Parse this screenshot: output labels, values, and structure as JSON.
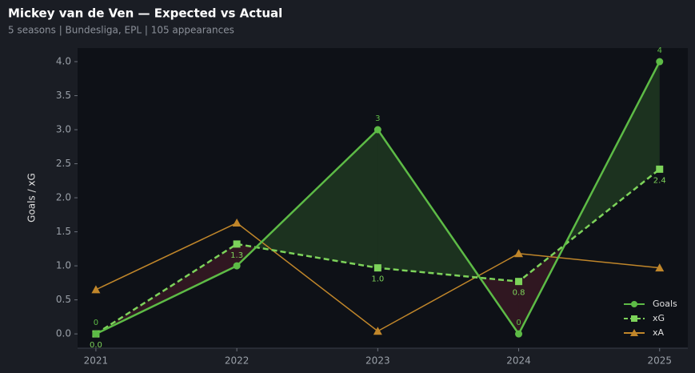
{
  "chart_data": {
    "type": "line",
    "title": "Mickey van de Ven — Expected vs Actual",
    "subtitle": "5 seasons | Bundesliga, EPL | 105 appearances",
    "ylabel": "Goals / xG",
    "x": [
      2021,
      2022,
      2023,
      2024,
      2025
    ],
    "xlim": [
      2020.87,
      2025.2
    ],
    "xticks": [
      2021,
      2022,
      2023,
      2024,
      2025
    ],
    "ylim": [
      -0.21,
      4.2
    ],
    "yticks": [
      {
        "value": 0,
        "label": "0.0"
      },
      {
        "value": 0.5,
        "label": "0.5"
      },
      {
        "value": 1,
        "label": "1.0"
      },
      {
        "value": 1.5,
        "label": "1.5"
      },
      {
        "value": 2,
        "label": "2.0"
      },
      {
        "value": 2.5,
        "label": "2.5"
      },
      {
        "value": 3,
        "label": "3.0"
      },
      {
        "value": 3.5,
        "label": "3.5"
      },
      {
        "value": 4,
        "label": "4.0"
      }
    ],
    "legend": "lower right",
    "series": [
      {
        "name": "Goals",
        "color": "#5dbb46",
        "marker": "circle",
        "dashed": false,
        "values": [
          0,
          1,
          3,
          0,
          4
        ],
        "value_labels": [
          "0",
          null,
          "3",
          "0",
          "4"
        ],
        "label_side": "above"
      },
      {
        "name": "xG",
        "color": "#7dd35a",
        "marker": "square",
        "dashed": true,
        "values": [
          0,
          1.32,
          0.97,
          0.77,
          2.42
        ],
        "value_labels": [
          "0.0",
          "1.3",
          "1.0",
          "0.8",
          "2.4"
        ],
        "label_side": "below"
      },
      {
        "name": "xA",
        "color": "#c0862a",
        "marker": "triangle",
        "dashed": false,
        "values": [
          0.65,
          1.63,
          0.04,
          1.18,
          0.97
        ]
      }
    ]
  }
}
